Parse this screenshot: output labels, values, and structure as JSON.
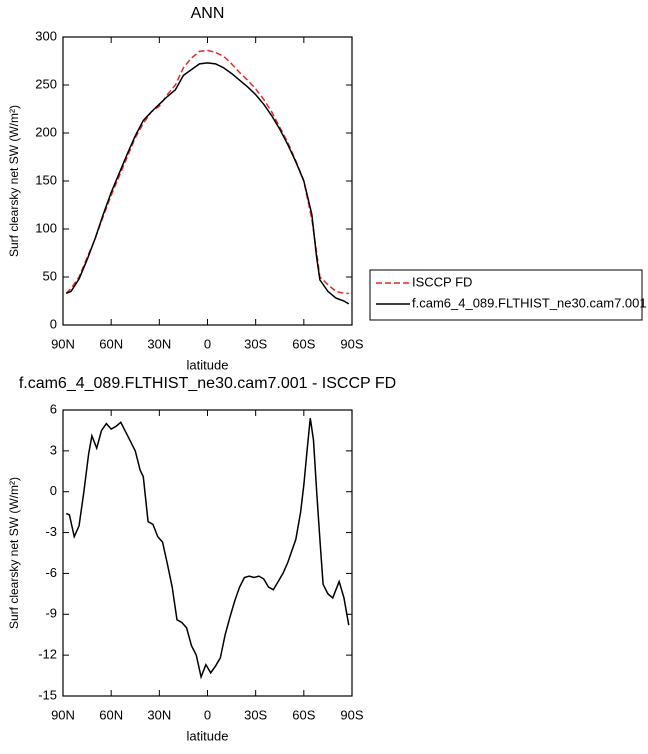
{
  "chart_data": [
    {
      "type": "line",
      "title": "ANN",
      "x_label": "latitude",
      "y_label": "Surf clearsky net SW (W/m²)",
      "xlim": [
        90,
        -90
      ],
      "xticks": [
        {
          "value": 90,
          "label": "90N"
        },
        {
          "value": 60,
          "label": "60N"
        },
        {
          "value": 30,
          "label": "30N"
        },
        0,
        {
          "value": -30,
          "label": "30S"
        },
        {
          "value": -60,
          "label": "60S"
        },
        {
          "value": -90,
          "label": "90S"
        }
      ],
      "ylim": [
        0,
        300
      ],
      "yticks": [
        0,
        50,
        100,
        150,
        200,
        250,
        300
      ],
      "legend": "right",
      "x": [
        88,
        85,
        80,
        75,
        70,
        65,
        60,
        55,
        50,
        45,
        40,
        35,
        30,
        25,
        20,
        15,
        10,
        5,
        0,
        -5,
        -10,
        -15,
        -20,
        -25,
        -30,
        -35,
        -40,
        -45,
        -50,
        -55,
        -60,
        -65,
        -68,
        -70,
        -75,
        -80,
        -85,
        -88
      ],
      "series": [
        {
          "name": "ISCCP FD",
          "color": "#e8262a",
          "dashed": true,
          "values": [
            33,
            38,
            50,
            70,
            90,
            113,
            135,
            155,
            175,
            195,
            210,
            222,
            228,
            240,
            250,
            268,
            278,
            285,
            286,
            284,
            280,
            272,
            263,
            255,
            246,
            235,
            222,
            206,
            190,
            171,
            150,
            110,
            75,
            50,
            42,
            35,
            33,
            33
          ]
        },
        {
          "name": "f.cam6_4_089.FLTHIST_ne30.cam7.001",
          "color": "#000000",
          "dashed": false,
          "values": [
            33,
            35,
            48,
            68,
            90,
            115,
            138,
            158,
            178,
            197,
            213,
            222,
            230,
            238,
            245,
            260,
            266,
            272,
            273,
            272,
            268,
            262,
            255,
            248,
            240,
            230,
            218,
            204,
            188,
            170,
            150,
            115,
            70,
            47,
            35,
            28,
            25,
            22
          ]
        }
      ]
    },
    {
      "type": "line",
      "title": "f.cam6_4_089.FLTHIST_ne30.cam7.001 - ISCCP FD",
      "x_label": "latitude",
      "y_label": "Surf clearsky net SW (W/m²)",
      "xlim": [
        90,
        -90
      ],
      "xticks": [
        {
          "value": 90,
          "label": "90N"
        },
        {
          "value": 60,
          "label": "60N"
        },
        {
          "value": 30,
          "label": "30N"
        },
        0,
        {
          "value": -30,
          "label": "30S"
        },
        {
          "value": -60,
          "label": "60S"
        },
        {
          "value": -90,
          "label": "90S"
        }
      ],
      "ylim": [
        -15,
        6
      ],
      "yticks": [
        -15,
        -12,
        -9,
        -6,
        -3,
        0,
        3,
        6
      ],
      "x": [
        88,
        86,
        83,
        80,
        77,
        74,
        72,
        69,
        66,
        63,
        60,
        57,
        54,
        51,
        48,
        45,
        42,
        40,
        37,
        34,
        31,
        28,
        25,
        22,
        19,
        16,
        13,
        10,
        7,
        4,
        1,
        -2,
        -5,
        -8,
        -11,
        -14,
        -17,
        -20,
        -23,
        -26,
        -29,
        -32,
        -35,
        -38,
        -41,
        -44,
        -47,
        -50,
        -55,
        -58,
        -60,
        -62,
        -64,
        -66,
        -68,
        -70,
        -72,
        -75,
        -78,
        -82,
        -85,
        -88
      ],
      "series": [
        {
          "color": "#000000",
          "dashed": false,
          "values": [
            -1.6,
            -1.7,
            -3.3,
            -2.5,
            0,
            2.8,
            4.1,
            3.2,
            4.5,
            5,
            4.6,
            4.8,
            5.1,
            4.4,
            3.7,
            3,
            1.6,
            1.1,
            -2.2,
            -2.4,
            -3.3,
            -3.7,
            -5.3,
            -7,
            -9.4,
            -9.6,
            -10,
            -11.3,
            -12,
            -13.6,
            -12.7,
            -13.3,
            -12.8,
            -12.2,
            -10.5,
            -9.2,
            -8,
            -7,
            -6.3,
            -6.2,
            -6.3,
            -6.2,
            -6.4,
            -7,
            -7.2,
            -6.6,
            -6,
            -5.2,
            -3.5,
            -1.5,
            0.5,
            3,
            5.4,
            3.8,
            0,
            -3.5,
            -6.8,
            -7.5,
            -7.8,
            -6.6,
            -7.8,
            -9.8
          ]
        }
      ]
    }
  ]
}
